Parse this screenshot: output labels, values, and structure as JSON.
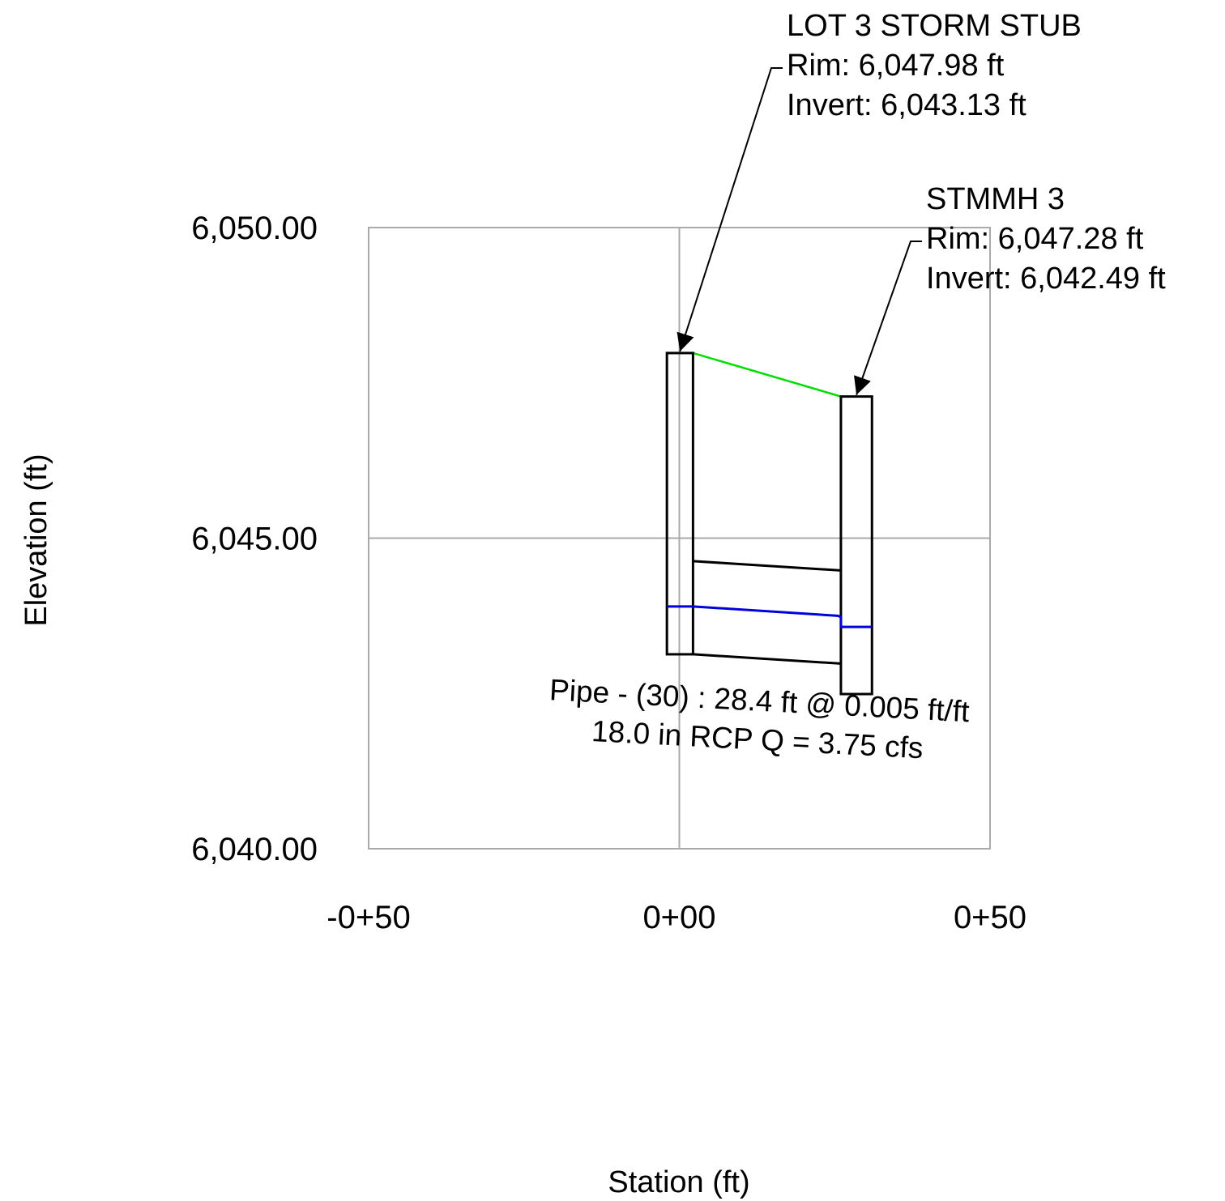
{
  "chart_data": {
    "type": "profile",
    "xlabel": "Station (ft)",
    "ylabel": "Elevation (ft)",
    "xlim": [
      -50,
      50
    ],
    "ylim": [
      6040,
      6050
    ],
    "x_ticks": [
      {
        "value": -50,
        "label": "-0+50"
      },
      {
        "value": 0,
        "label": "0+00"
      },
      {
        "value": 50,
        "label": "0+50"
      }
    ],
    "y_ticks": [
      {
        "value": 6050,
        "label": "6,050.00"
      },
      {
        "value": 6045,
        "label": "6,045.00"
      },
      {
        "value": 6040,
        "label": "6,040.00"
      }
    ],
    "grid": true,
    "structures": [
      {
        "name": "LOT 3 STORM STUB",
        "rim_text": "Rim: 6,047.98 ft",
        "invert_text": "Invert: 6,043.13 ft",
        "station_left": -2,
        "station_right": 2.2,
        "rim": 6047.98,
        "invert": 6043.13,
        "hgl": 6043.9
      },
      {
        "name": "STMMH 3",
        "rim_text": "Rim: 6,047.28 ft",
        "invert_text": "Invert: 6,042.49 ft",
        "station_left": 26,
        "station_right": 31,
        "rim": 6047.28,
        "invert": 6042.49,
        "hgl": 6043.57
      }
    ],
    "ground_line": {
      "color": "#00dd00",
      "points": [
        [
          2.2,
          6047.98
        ],
        [
          26,
          6047.28
        ]
      ]
    },
    "pipe": {
      "start_station": 2.2,
      "end_station": 26,
      "invert_start": 6043.13,
      "invert_end": 6042.98,
      "crown_start": 6044.63,
      "crown_end": 6044.48,
      "hgl_color": "#0000dd",
      "hgl_points": [
        [
          -2,
          6043.9
        ],
        [
          2.2,
          6043.9
        ],
        [
          25.5,
          6043.75
        ],
        [
          26,
          6043.73
        ],
        [
          26,
          6043.57
        ],
        [
          31,
          6043.57
        ]
      ],
      "label_line1": "Pipe - (30) : 28.4 ft @ 0.005 ft/ft",
      "label_line2": "18.0 in RCP Q = 3.75 cfs",
      "label_station": 12.8,
      "label_elevation": 6042.22,
      "label_rotation_deg": 3
    },
    "colors": {
      "grid": "#aaaaaa",
      "structure": "#000000",
      "ground": "#00dd00",
      "hgl": "#0000dd"
    }
  }
}
